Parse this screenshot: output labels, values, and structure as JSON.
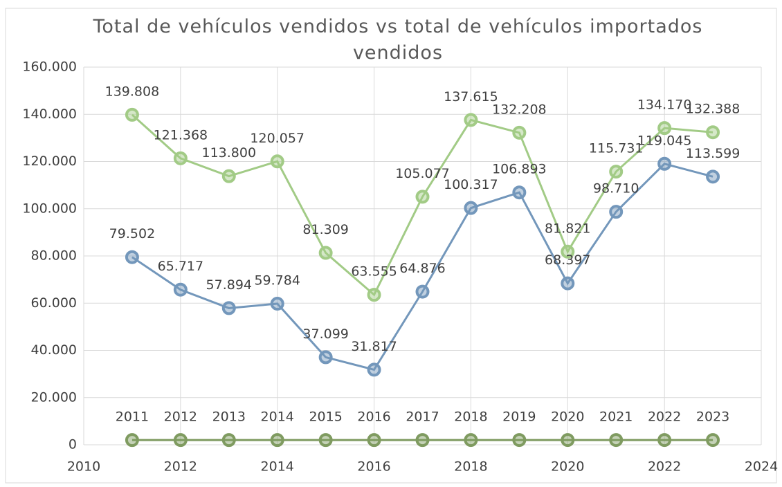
{
  "chart_data": {
    "type": "scatter_line",
    "title": "Total de vehículos vendidos vs total de vehículos importados vendidos",
    "x": [
      2011,
      2012,
      2013,
      2014,
      2015,
      2016,
      2017,
      2018,
      2019,
      2020,
      2021,
      2022,
      2023
    ],
    "series": [
      {
        "color": "#a2cb86",
        "values": [
          139808,
          121368,
          113800,
          120057,
          81309,
          63555,
          105077,
          137615,
          132208,
          81821,
          115731,
          134170,
          132388
        ],
        "value_labels": [
          "139.808",
          "121.368",
          "113.800",
          "120.057",
          "81.309",
          "63.555",
          "105.077",
          "137.615",
          "132.208",
          "81.821",
          "115.731",
          "134.170",
          "132.388"
        ]
      },
      {
        "color": "#7397bb",
        "values": [
          79502,
          65717,
          57894,
          59784,
          37099,
          31817,
          64876,
          100317,
          106893,
          68397,
          98710,
          119045,
          113599
        ],
        "value_labels": [
          "79.502",
          "65.717",
          "57.894",
          "59.784",
          "37.099",
          "31.817",
          "64.876",
          "100.317",
          "106.893",
          "68.397",
          "98.710",
          "119.045",
          "113.599"
        ]
      },
      {
        "color": "#7f9b60",
        "values": [
          2011,
          2012,
          2013,
          2014,
          2015,
          2016,
          2017,
          2018,
          2019,
          2020,
          2021,
          2022,
          2023
        ]
      }
    ],
    "xlim": [
      2010,
      2024
    ],
    "xticks": [
      2010,
      2012,
      2014,
      2016,
      2018,
      2020,
      2022,
      2024
    ],
    "ylim": [
      0,
      160000
    ],
    "yticks": [
      0,
      {
        "value": 20000,
        "label": "20.000"
      },
      {
        "value": 40000,
        "label": "40.000"
      },
      {
        "value": 60000,
        "label": "60.000"
      },
      {
        "value": 80000,
        "label": "80.000"
      },
      {
        "value": 100000,
        "label": "100.000"
      },
      {
        "value": 120000,
        "label": "120.000"
      },
      {
        "value": 140000,
        "label": "140.000"
      },
      {
        "value": 160000,
        "label": "160.000"
      }
    ],
    "grid": true
  }
}
